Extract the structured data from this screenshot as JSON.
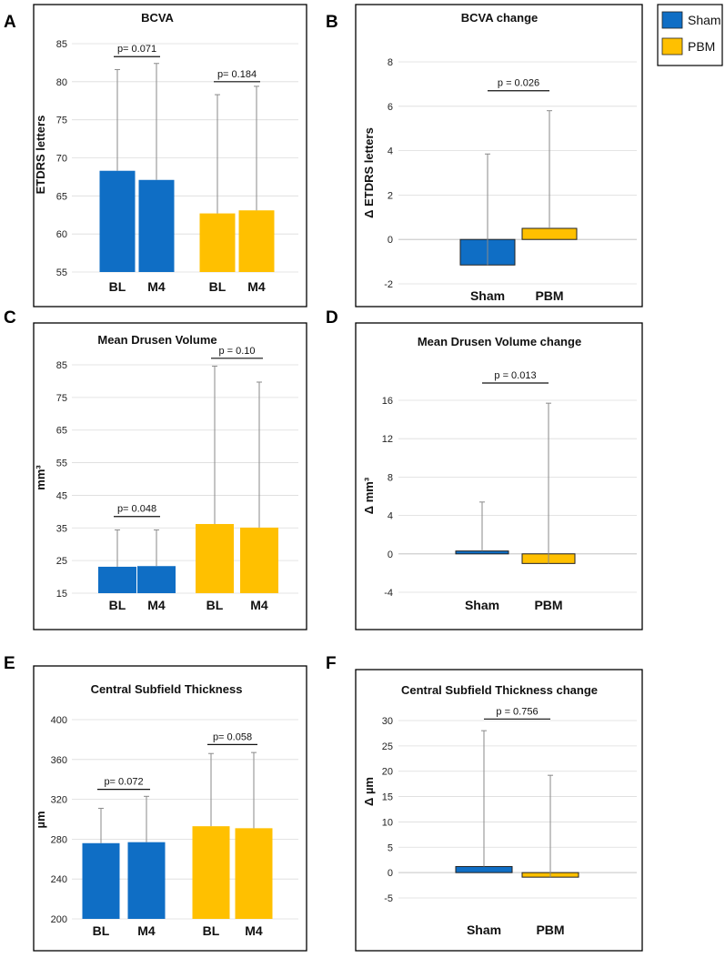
{
  "legend": {
    "items": [
      {
        "label": "Sham",
        "color": "#0F6EC5"
      },
      {
        "label": "PBM",
        "color": "#FFC000"
      }
    ]
  },
  "colors": {
    "sham": "#0F6EC5",
    "pbm": "#FFC000",
    "error_bar": "#8A8A8A",
    "grid": "#DCDCDC",
    "frame": "#000000"
  },
  "chart_data": [
    {
      "panel": "A",
      "type": "bar",
      "title": "BCVA",
      "ylabel": "ETDRS letters",
      "ylim": [
        55,
        85
      ],
      "yticks": [
        55,
        60,
        65,
        70,
        75,
        80,
        85
      ],
      "categories": [
        "BL",
        "M4",
        "BL",
        "M4"
      ],
      "groups": [
        "Sham",
        "Sham",
        "PBM",
        "PBM"
      ],
      "values": [
        68.3,
        67.1,
        62.7,
        63.1
      ],
      "err_upper": [
        81.6,
        82.4,
        78.3,
        79.4
      ],
      "annotations": [
        {
          "text": "p= 0.071",
          "bars": [
            0,
            1
          ],
          "y": 83.3
        },
        {
          "text": "p= 0.184",
          "bars": [
            2,
            3
          ],
          "y": 80.0
        }
      ]
    },
    {
      "panel": "B",
      "type": "bar",
      "title": "BCVA change",
      "ylabel": "Δ ETDRS letters",
      "ylim": [
        -2,
        8
      ],
      "yticks": [
        -2,
        0,
        2,
        4,
        6,
        8
      ],
      "categories": [
        "Sham",
        "PBM"
      ],
      "groups": [
        "Sham",
        "PBM"
      ],
      "values": [
        -1.15,
        0.5
      ],
      "err_upper": [
        3.85,
        5.8
      ],
      "annotations": [
        {
          "text": "p = 0.026",
          "bars": [
            0,
            1
          ],
          "y": 6.7
        }
      ]
    },
    {
      "panel": "C",
      "type": "bar",
      "title": "Mean Drusen Volume",
      "ylabel": "mm³",
      "ylim": [
        15,
        85
      ],
      "yticks": [
        15,
        25,
        35,
        45,
        55,
        65,
        75,
        85
      ],
      "categories": [
        "BL",
        "M4",
        "BL",
        "M4"
      ],
      "groups": [
        "Sham",
        "Sham",
        "PBM",
        "PBM"
      ],
      "values": [
        23.1,
        23.3,
        36.2,
        35.1
      ],
      "err_upper": [
        34.4,
        34.4,
        84.6,
        79.7
      ],
      "annotations": [
        {
          "text": "p= 0.048",
          "bars": [
            0,
            1
          ],
          "y": 38.5
        },
        {
          "text": "p = 0.10",
          "bars": [
            2,
            3
          ],
          "y": 87.0
        }
      ]
    },
    {
      "panel": "D",
      "type": "bar",
      "title": "Mean Drusen Volume change",
      "ylabel": "Δ mm³",
      "ylim": [
        -4,
        16
      ],
      "yticks": [
        -4,
        0,
        4,
        8,
        12,
        16
      ],
      "categories": [
        "Sham",
        "PBM"
      ],
      "groups": [
        "Sham",
        "PBM"
      ],
      "values": [
        0.3,
        -1.0
      ],
      "err_upper": [
        5.4,
        15.7
      ],
      "annotations": [
        {
          "text": "p = 0.013",
          "bars": [
            0,
            1
          ],
          "y": 17.8
        }
      ]
    },
    {
      "panel": "E",
      "type": "bar",
      "title": "Central Subfield Thickness",
      "ylabel": "µm",
      "ylim": [
        200,
        400
      ],
      "yticks": [
        200,
        240,
        280,
        320,
        360,
        400
      ],
      "categories": [
        "BL",
        "M4",
        "BL",
        "M4"
      ],
      "groups": [
        "Sham",
        "Sham",
        "PBM",
        "PBM"
      ],
      "values": [
        276,
        277,
        293,
        291
      ],
      "err_upper": [
        311,
        323,
        366,
        367
      ],
      "annotations": [
        {
          "text": "p= 0.072",
          "bars": [
            0,
            1
          ],
          "y": 330
        },
        {
          "text": "p= 0.058",
          "bars": [
            2,
            3
          ],
          "y": 375
        }
      ]
    },
    {
      "panel": "F",
      "type": "bar",
      "title": "Central Subfield Thickness change",
      "ylabel": "Δ µm",
      "ylim": [
        -5,
        30
      ],
      "yticks": [
        -5,
        0,
        5,
        10,
        15,
        20,
        25,
        30
      ],
      "categories": [
        "Sham",
        "PBM"
      ],
      "groups": [
        "Sham",
        "PBM"
      ],
      "values": [
        1.2,
        -0.9
      ],
      "err_upper": [
        28.0,
        19.2
      ],
      "annotations": [
        {
          "text": "p = 0.756",
          "bars": [
            0,
            1
          ],
          "y": 30.3
        }
      ]
    }
  ]
}
